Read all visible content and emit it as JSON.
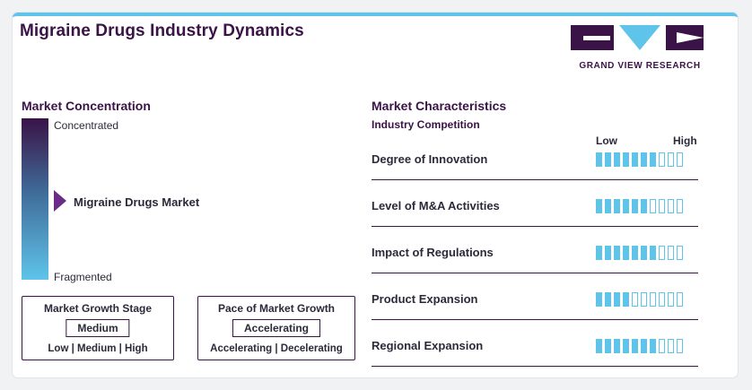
{
  "title": "Migraine Drugs Industry Dynamics",
  "logo": {
    "name": "GRAND VIEW RESEARCH",
    "colors": {
      "primary": "#3a1347",
      "accent": "#5fc4ea"
    }
  },
  "concentration": {
    "heading": "Market Concentration",
    "top_label": "Concentrated",
    "bottom_label": "Fragmented",
    "marker_label": "Migraine Drugs Market",
    "marker_level": 0.5
  },
  "growth_stage": {
    "title": "Market Growth Stage",
    "value": "Medium",
    "options": "Low | Medium | High"
  },
  "growth_pace": {
    "title": "Pace of Market Growth",
    "value": "Accelerating",
    "options": "Accelerating | Decelerating"
  },
  "characteristics": {
    "heading": "Market Characteristics",
    "subheading": "Industry Competition",
    "low_label": "Low",
    "high_label": "High",
    "max_level": 10,
    "rows": [
      {
        "label": "Degree of Innovation",
        "level": 7
      },
      {
        "label": "Level of M&A Activities",
        "level": 6
      },
      {
        "label": "Impact of Regulations",
        "level": 7
      },
      {
        "label": "Product Expansion",
        "level": 4
      },
      {
        "label": "Regional Expansion",
        "level": 7
      }
    ]
  },
  "colors": {
    "dark": "#3a1347",
    "accent": "#5fc4ea",
    "marker": "#6a2c86"
  }
}
